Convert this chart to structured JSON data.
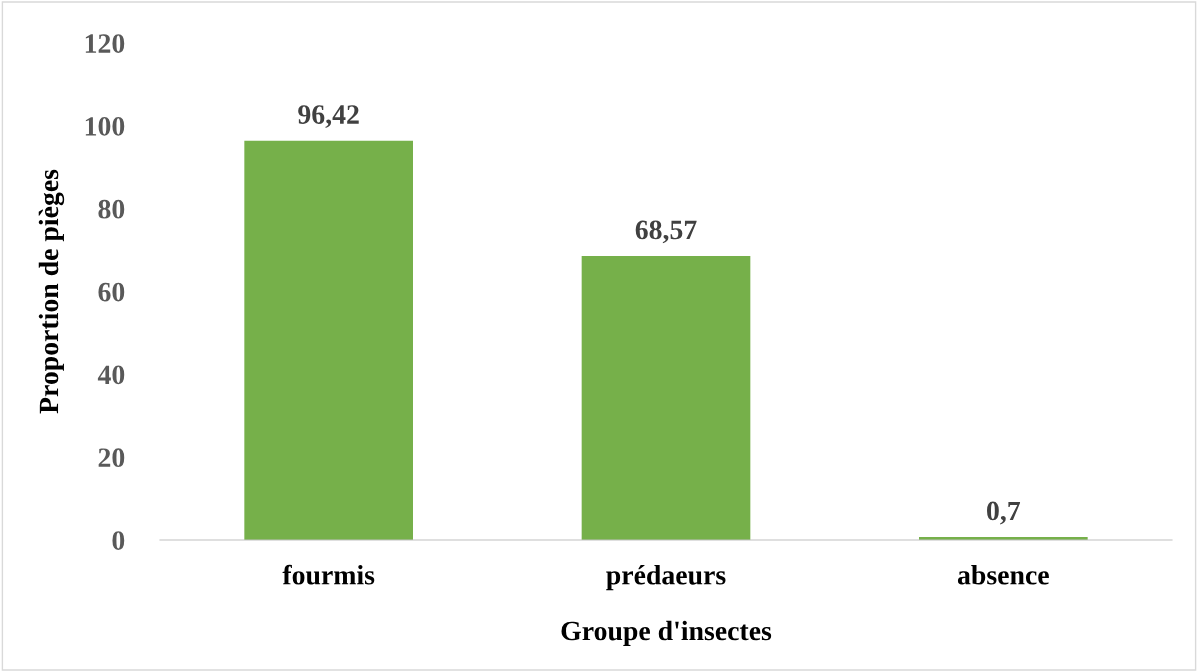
{
  "chart_data": {
    "type": "bar",
    "xlabel": "Groupe d'insectes",
    "ylabel": "Proportion de pièges",
    "categories": [
      "fourmis",
      "prédaeurs",
      "absence"
    ],
    "values": [
      96.42,
      68.57,
      0.7
    ],
    "value_labels": [
      "96,42",
      "68,57",
      "0,7"
    ],
    "color": "#76b04a",
    "ylim": [
      0,
      120
    ],
    "yticks": [
      0,
      20,
      40,
      60,
      80,
      100,
      120
    ],
    "grid": false,
    "legend": false
  }
}
